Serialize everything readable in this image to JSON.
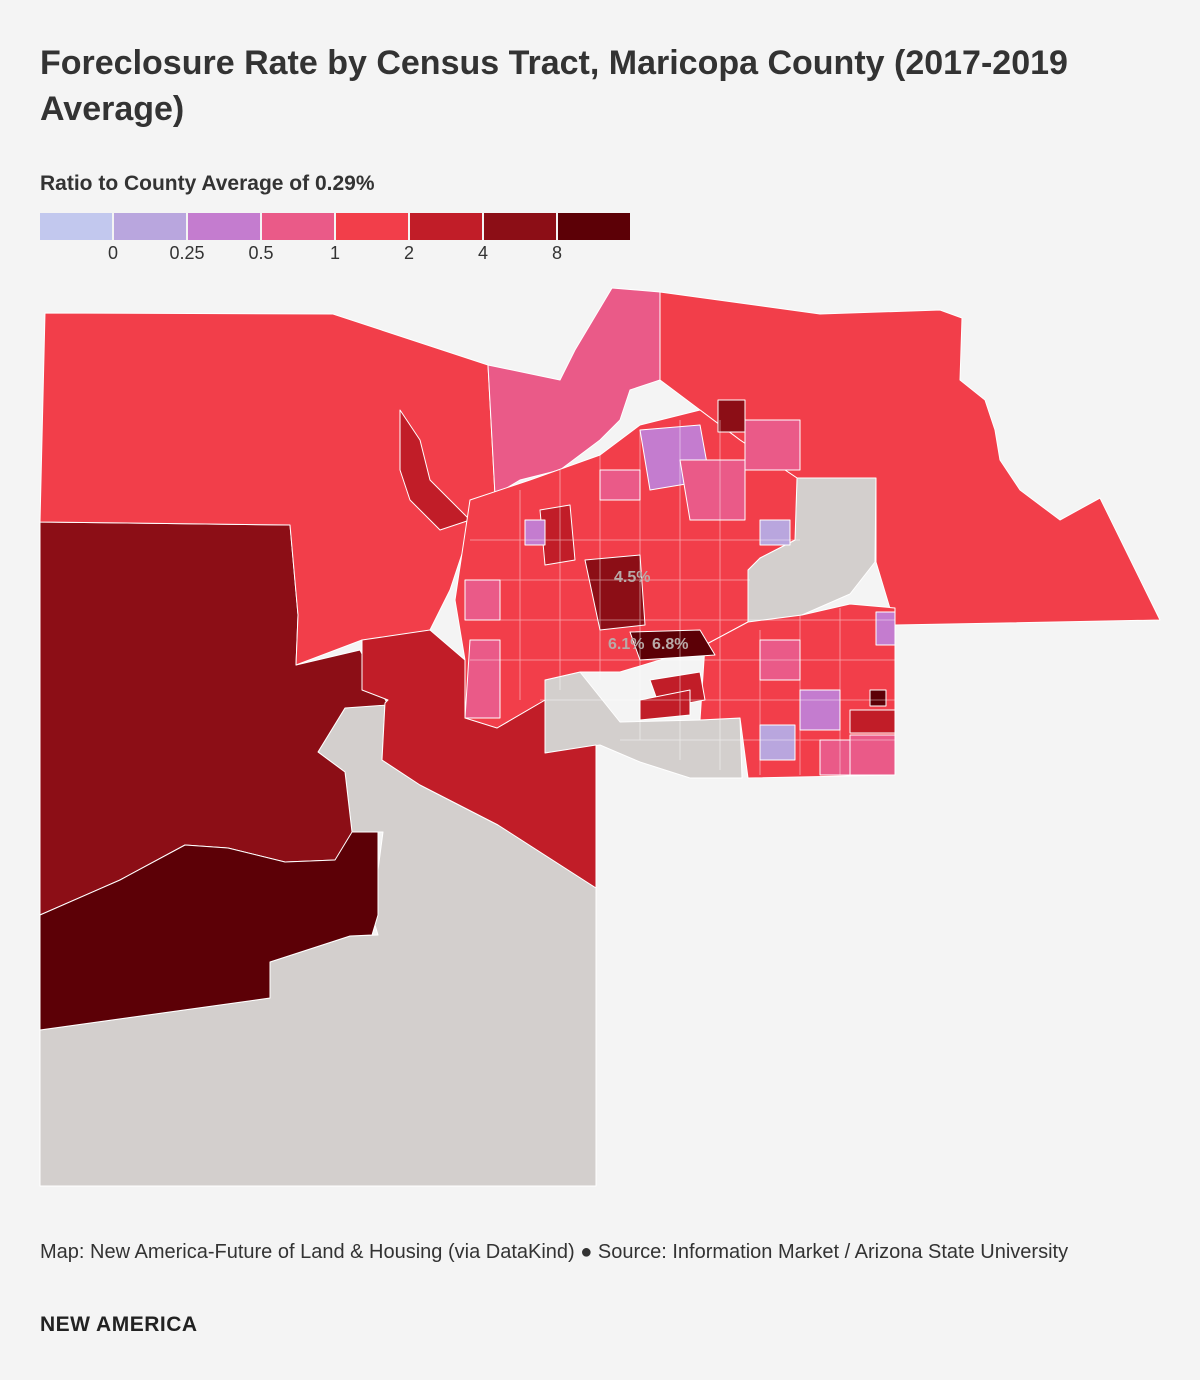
{
  "header": {
    "title": "Foreclosure Rate by Census Tract, Maricopa County (2017-2019 Average)"
  },
  "legend": {
    "title": "Ratio to County Average of 0.29%",
    "colors": [
      "#c2c8ee",
      "#b9a6de",
      "#c47ccf",
      "#ea5a88",
      "#f23e4a",
      "#c11d28",
      "#8c0e16",
      "#5c0006"
    ],
    "ticks": [
      "0",
      "0.25",
      "0.5",
      "1",
      "2",
      "4",
      "8"
    ]
  },
  "colors": {
    "no_data": "#d3cfcd",
    "pink": "#ea5a88",
    "red": "#f23e4a",
    "dark_red": "#c11d28",
    "darker_red": "#8c0e16",
    "darkest_red": "#5c0006",
    "lavender": "#b9a6de",
    "purple": "#c47ccf"
  },
  "map": {
    "callouts": [
      "4.5%",
      "6.1%",
      "6.8%"
    ]
  },
  "footer": {
    "source": "Map: New America-Future of Land & Housing (via DataKind) ● Source: Information Market / Arizona State University",
    "brand": "NEW AMERICA"
  }
}
